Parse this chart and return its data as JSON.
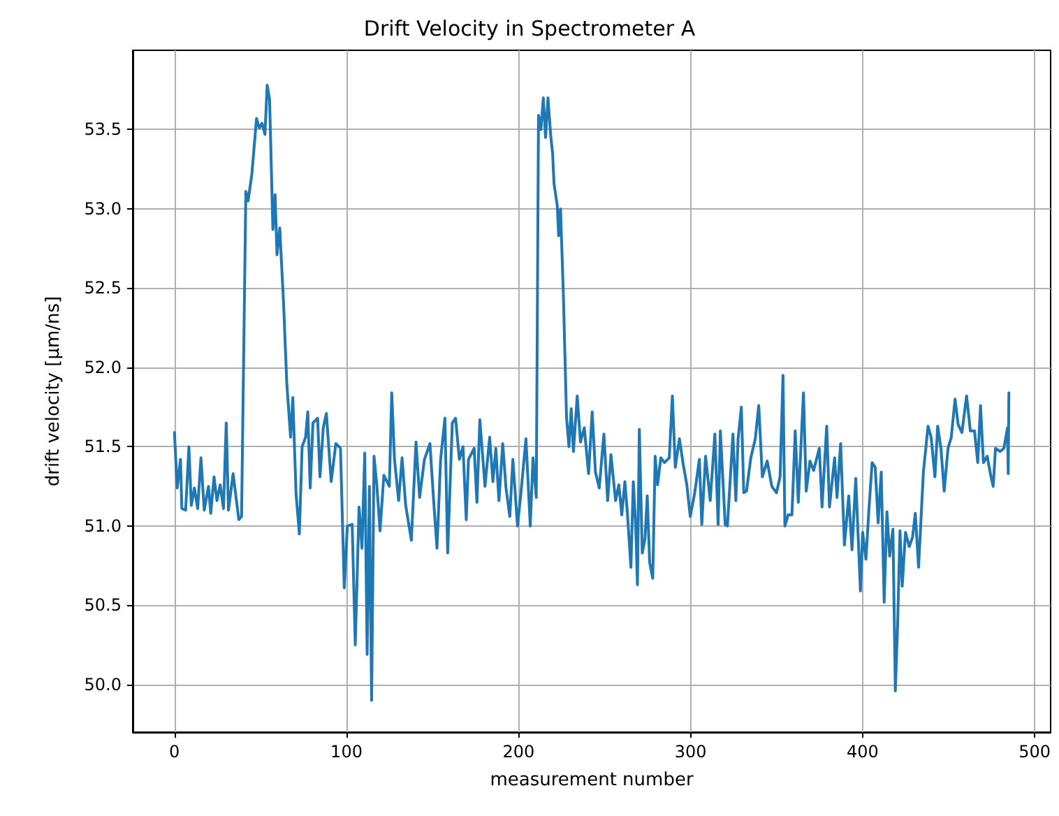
{
  "chart_data": {
    "type": "line",
    "title": "Drift Velocity in Spectrometer A",
    "xlabel": "measurement number",
    "ylabel": "drift velocity [μm/ns]",
    "xlim": [
      -24.25,
      509.25
    ],
    "xticks": [
      0,
      100,
      200,
      300,
      400,
      500
    ],
    "ylim": [
      49.7,
      54.0
    ],
    "yticks": [
      {
        "value": 50,
        "label": "50.0"
      },
      50.5,
      {
        "value": 51,
        "label": "51.0"
      },
      51.5,
      {
        "value": 52,
        "label": "52.0"
      },
      52.5,
      {
        "value": 53,
        "label": "53.0"
      },
      53.5
    ],
    "grid": true,
    "marker": "none",
    "line_style": "solid",
    "series": [
      {
        "color": "#1f77b4",
        "x": [
          0,
          1.6,
          3.5,
          4.3,
          6.5,
          8.4,
          9.8,
          11.6,
          13.5,
          15.4,
          17.3,
          19.8,
          21.1,
          23,
          24.7,
          26.6,
          28.5,
          30.1,
          31.4,
          34.1,
          37.4,
          39,
          41.5,
          42.8,
          45,
          47.7,
          49.3,
          50.9,
          52.6,
          53.9,
          55.3,
          57.2,
          58.5,
          59.6,
          61.2,
          63.4,
          65.3,
          67.5,
          68.8,
          70.7,
          72.6,
          74.2,
          76.2,
          77.5,
          78.9,
          80.5,
          83.2,
          84.6,
          86.5,
          88.3,
          91.1,
          93.8,
          96.5,
          98.7,
          100.5,
          103.3,
          105.1,
          107.3,
          109,
          110.6,
          112,
          113.3,
          114.6,
          116,
          117.6,
          119.5,
          121.7,
          124.9,
          126.3,
          127.9,
          130.3,
          132.3,
          134.4,
          137.7,
          140.4,
          142.5,
          145.3,
          148.5,
          150.7,
          152.6,
          154.7,
          157.2,
          158.8,
          161.5,
          163.4,
          165.6,
          167.7,
          169.6,
          170.9,
          174.2,
          175.8,
          177.5,
          180.5,
          183.2,
          185.1,
          186.8,
          188.6,
          190.8,
          192.7,
          194.9,
          196.7,
          199.4,
          201.4,
          204.3,
          206.8,
          208.4,
          210.3,
          211.6,
          213,
          214.4,
          215.7,
          217.1,
          218.7,
          219.8,
          220.6,
          222.5,
          223.3,
          224.4,
          226,
          227.9,
          229.3,
          230.6,
          231.9,
          234.1,
          236,
          238.2,
          240.7,
          242.8,
          244.7,
          246.9,
          249.6,
          251.8,
          253.7,
          256.4,
          258.3,
          260,
          261.8,
          263.2,
          265.3,
          266.7,
          268.1,
          269.1,
          270.2,
          271.9,
          273.5,
          274.8,
          276.2,
          278,
          279.4,
          280.8,
          282.7,
          284.8,
          287.6,
          289.4,
          291.1,
          293.5,
          295.7,
          297.8,
          299.8,
          302.4,
          305.1,
          306.5,
          308.7,
          311.4,
          314.1,
          316,
          317.3,
          320.1,
          321.4,
          324.6,
          326.3,
          327.6,
          329.5,
          330.9,
          332.5,
          335,
          337.6,
          339.6,
          341.7,
          344.5,
          347.2,
          349.9,
          352,
          353.7,
          354.8,
          356.7,
          358.9,
          360.8,
          362.6,
          365.6,
          367.2,
          369.4,
          371.5,
          374.8,
          376.4,
          379.1,
          380.7,
          383.7,
          385.1,
          387.2,
          389.4,
          391.9,
          393.8,
          396,
          398.7,
          400,
          401.9,
          403.5,
          405.5,
          407.3,
          409,
          410.8,
          412.5,
          414.1,
          415.7,
          417.6,
          419,
          420.3,
          421.7,
          423,
          424.9,
          427.1,
          429,
          430.6,
          432.5,
          435.3,
          438,
          439.8,
          442,
          443.6,
          445.5,
          447.4,
          449.6,
          451.5,
          453.7,
          455.5,
          457.7,
          460.4,
          462.6,
          465,
          466.9,
          468.5,
          470.2,
          472.4,
          474.6,
          475.9,
          477.2,
          479.9,
          482.1,
          484.2,
          484.6,
          485
        ],
        "values": [
          51.59,
          51.24,
          51.42,
          51.11,
          51.1,
          51.5,
          51.13,
          51.24,
          51.11,
          51.43,
          51.1,
          51.25,
          51.08,
          51.31,
          51.16,
          51.26,
          51.11,
          51.65,
          51.1,
          51.33,
          51.04,
          51.06,
          53.11,
          53.05,
          53.22,
          53.57,
          53.51,
          53.54,
          53.47,
          53.78,
          53.69,
          52.87,
          53.09,
          52.71,
          52.88,
          52.41,
          51.9,
          51.56,
          51.81,
          51.2,
          50.95,
          51.5,
          51.56,
          51.72,
          51.24,
          51.65,
          51.68,
          51.31,
          51.62,
          51.71,
          51.28,
          51.52,
          51.49,
          50.61,
          51,
          51.01,
          50.25,
          51.12,
          50.86,
          51.46,
          50.19,
          51.25,
          49.9,
          51.44,
          51.26,
          50.97,
          51.32,
          51.25,
          51.84,
          51.42,
          51.16,
          51.43,
          51.13,
          50.91,
          51.53,
          51.18,
          51.42,
          51.52,
          51.15,
          50.86,
          51.42,
          51.68,
          50.83,
          51.65,
          51.68,
          51.42,
          51.5,
          51.04,
          51.42,
          51.49,
          51.15,
          51.67,
          51.25,
          51.56,
          51.28,
          51.49,
          51.16,
          51.52,
          51.24,
          51.06,
          51.42,
          51,
          51.21,
          51.55,
          51,
          51.43,
          51.18,
          53.59,
          53.5,
          53.7,
          53.45,
          53.7,
          53.46,
          53.35,
          53.16,
          53.02,
          52.83,
          53,
          52.48,
          51.68,
          51.5,
          51.74,
          51.47,
          51.82,
          51.53,
          51.62,
          51.33,
          51.72,
          51.34,
          51.24,
          51.58,
          51.16,
          51.45,
          51.16,
          51.26,
          51.07,
          51.28,
          51.09,
          50.74,
          51.28,
          51,
          50.63,
          51.61,
          50.83,
          50.92,
          51.19,
          50.77,
          50.67,
          51.44,
          51.26,
          51.43,
          51.4,
          51.43,
          51.82,
          51.37,
          51.55,
          51.39,
          51.26,
          51.06,
          51.21,
          51.42,
          51.01,
          51.44,
          51.16,
          51.58,
          51.01,
          51.6,
          51.01,
          51,
          51.58,
          51.16,
          51.55,
          51.75,
          51.21,
          51.22,
          51.43,
          51.55,
          51.76,
          51.31,
          51.41,
          51.25,
          51.21,
          51.31,
          51.95,
          51,
          51.07,
          51.07,
          51.6,
          51.15,
          51.84,
          51.22,
          51.41,
          51.35,
          51.49,
          51.12,
          51.63,
          51.12,
          51.43,
          51.18,
          51.52,
          50.88,
          51.19,
          50.85,
          51.3,
          50.59,
          50.96,
          50.79,
          51.08,
          51.4,
          51.37,
          51.02,
          51.34,
          50.52,
          51.09,
          50.81,
          50.98,
          49.96,
          50.37,
          50.97,
          50.62,
          50.96,
          50.87,
          50.93,
          51.08,
          50.74,
          51.34,
          51.63,
          51.56,
          51.31,
          51.63,
          51.49,
          51.22,
          51.49,
          51.56,
          51.8,
          51.64,
          51.59,
          51.82,
          51.6,
          51.6,
          51.4,
          51.76,
          51.4,
          51.44,
          51.31,
          51.25,
          51.49,
          51.47,
          51.49,
          51.62,
          51.33,
          51.84
        ]
      }
    ]
  }
}
